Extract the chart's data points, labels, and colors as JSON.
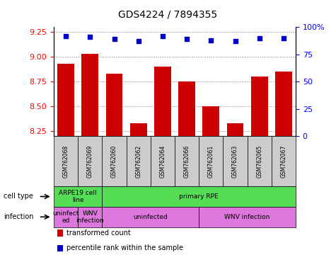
{
  "title": "GDS4224 / 7894355",
  "samples": [
    "GSM762068",
    "GSM762069",
    "GSM762060",
    "GSM762062",
    "GSM762064",
    "GSM762066",
    "GSM762061",
    "GSM762063",
    "GSM762065",
    "GSM762067"
  ],
  "transformed_counts": [
    8.93,
    9.03,
    8.83,
    8.33,
    8.9,
    8.75,
    8.5,
    8.33,
    8.8,
    8.85
  ],
  "percentile_ranks": [
    92,
    91,
    89,
    87,
    92,
    89,
    88,
    87,
    90,
    90
  ],
  "ylim_left": [
    8.2,
    9.3
  ],
  "ylim_right": [
    0,
    100
  ],
  "yticks_left": [
    8.25,
    8.5,
    8.75,
    9.0,
    9.25
  ],
  "yticks_right": [
    0,
    25,
    50,
    75,
    100
  ],
  "bar_color": "#cc0000",
  "dot_color": "#0000cc",
  "cell_type_groups": [
    {
      "label": "ARPE19 cell\nline",
      "start": 0,
      "end": 2,
      "color": "#55dd55"
    },
    {
      "label": "primary RPE",
      "start": 2,
      "end": 10,
      "color": "#55dd55"
    }
  ],
  "infection_groups": [
    {
      "label": "uninfect\ned",
      "start": 0,
      "end": 1,
      "color": "#dd77dd"
    },
    {
      "label": "WNV\ninfection",
      "start": 1,
      "end": 2,
      "color": "#dd77dd"
    },
    {
      "label": "uninfected",
      "start": 2,
      "end": 6,
      "color": "#dd77dd"
    },
    {
      "label": "WNV infection",
      "start": 6,
      "end": 10,
      "color": "#dd77dd"
    }
  ],
  "legend_items": [
    {
      "label": "transformed count",
      "color": "#cc0000"
    },
    {
      "label": "percentile rank within the sample",
      "color": "#0000cc"
    }
  ],
  "tick_bg_color": "#cccccc",
  "title_fontsize": 10,
  "tick_fontsize": 7,
  "annotation_fontsize": 7.5
}
